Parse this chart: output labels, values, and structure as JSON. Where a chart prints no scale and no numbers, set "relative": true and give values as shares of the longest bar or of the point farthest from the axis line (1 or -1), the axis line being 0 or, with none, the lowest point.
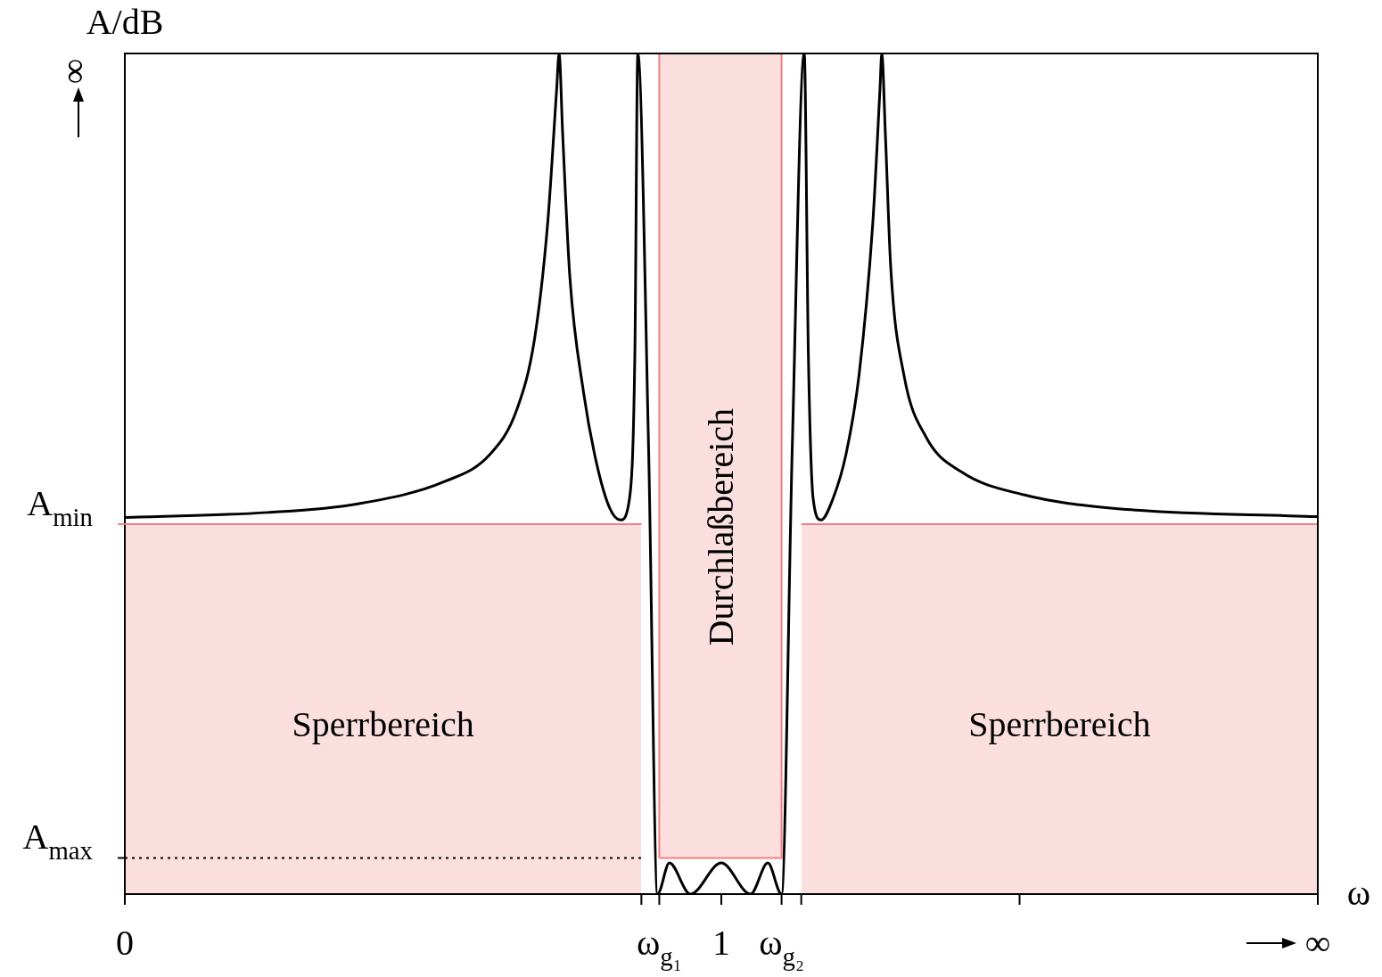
{
  "chart_data": {
    "type": "line",
    "relative": true,
    "ylabel": "A/dB",
    "xlabel": "ω",
    "xlim": [
      0,
      2
    ],
    "xticks": [
      0,
      {
        "value": 0.866,
        "label": null
      },
      {
        "value": 0.896,
        "label": "ω$_{g₁}$"
      },
      1,
      {
        "value": 1.101,
        "label": "ω$_{g₂}$"
      },
      {
        "value": 1.134,
        "label": null
      },
      {
        "value": 1.5,
        "label": null
      },
      {
        "value": 2,
        "label": "∞"
      }
    ],
    "series": [
      {
        "color": "#000000",
        "x": [
          0,
          0.239,
          0.388,
          0.537,
          0.612,
          0.657,
          0.687,
          0.709,
          0.724,
          0.728,
          0.734,
          0.746,
          0.769,
          0.791,
          0.813,
          0.831,
          0.846,
          0.855,
          0.86,
          0.878,
          0.893,
          0.913,
          0.948,
          1,
          1.049,
          1.078,
          1.101,
          1.119,
          1.139,
          1.146,
          1.154,
          1.167,
          1.187,
          1.209,
          1.231,
          1.254,
          1.266,
          1.269,
          1.275,
          1.284,
          1.306,
          1.343,
          1.403,
          1.507,
          1.657,
          2
        ],
        "values": [
          0.448,
          0.454,
          0.464,
          0.491,
          0.523,
          0.576,
          0.661,
          0.799,
          0.958,
          1,
          0.905,
          0.735,
          0.597,
          0.512,
          0.459,
          0.445,
          0.47,
          0.639,
          1,
          0.533,
          0,
          0.037,
          0,
          0.037,
          0,
          0.037,
          0,
          0.533,
          1,
          0.639,
          0.47,
          0.445,
          0.47,
          0.523,
          0.618,
          0.799,
          0.958,
          1,
          0.905,
          0.746,
          0.618,
          0.544,
          0.502,
          0.475,
          0.459,
          0.449
        ]
      },
      {
        "type": "area",
        "name": "Sperrbereich",
        "color": "#f08080",
        "x": [
          0,
          0.866
        ],
        "values": [
          0.44,
          0.44
        ]
      },
      {
        "type": "area",
        "name": "Durchlaßbereich",
        "color": "#f08080",
        "x": [
          0.896,
          0.896,
          1.101,
          1.101,
          0.896
        ],
        "values": [
          0.043,
          1,
          1,
          0.043,
          0.043
        ]
      },
      {
        "type": "area",
        "name": "Sperrbereich",
        "color": "#f08080",
        "x": [
          1.134,
          2
        ],
        "values": [
          0.44,
          0.44
        ]
      }
    ],
    "ref_lines": [
      {
        "axis": "y",
        "value": 0.44,
        "label": "A$_{min}$",
        "color": "#f08080",
        "line_style": "solid"
      },
      {
        "axis": "y",
        "value": 0.043,
        "label": "A$_{max}$",
        "color": "#000000",
        "line_style": "dotted"
      }
    ],
    "annotations": [
      "∞"
    ],
    "legend": false
  }
}
